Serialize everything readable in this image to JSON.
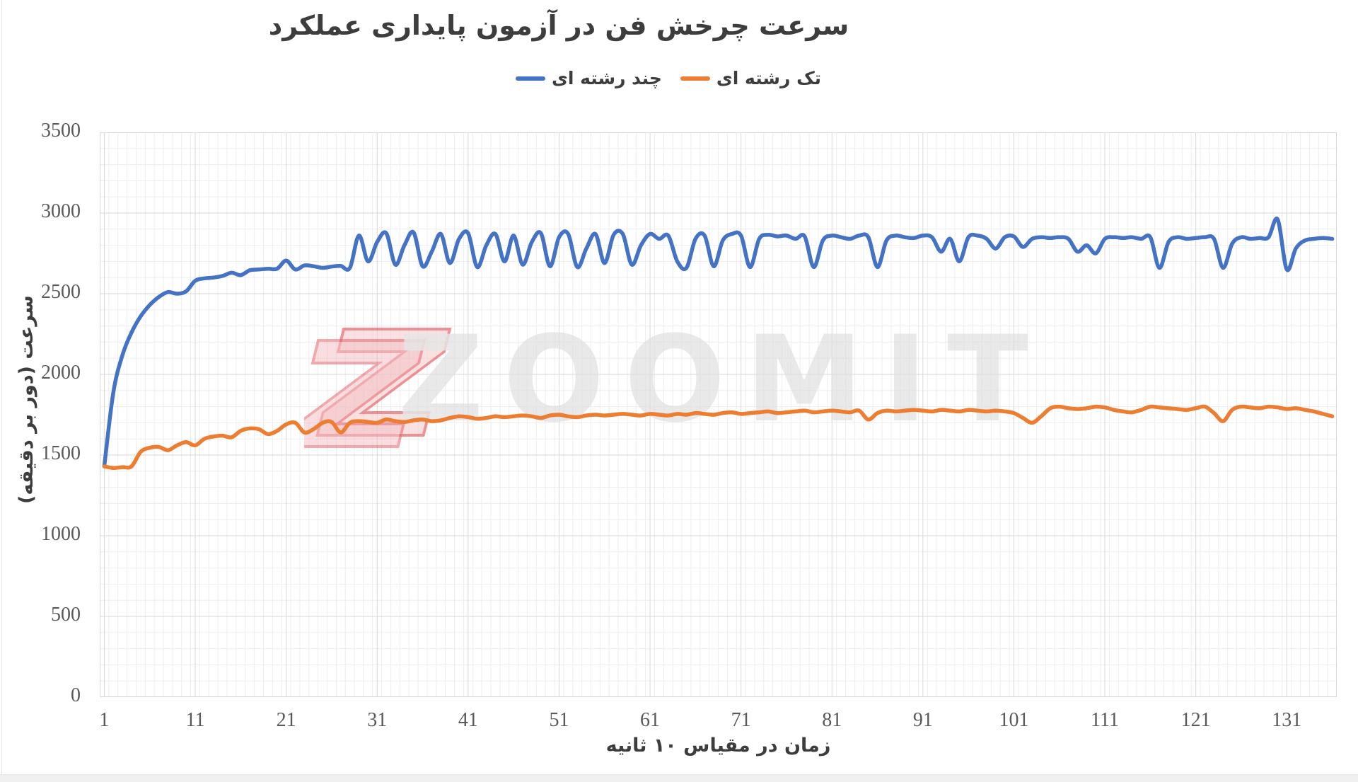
{
  "title": "سرعت چرخش فن در آزمون پایداری عملکرد",
  "legend": [
    {
      "label": "چند رشته ای",
      "color": "#4472C4"
    },
    {
      "label": "تک رشته ای",
      "color": "#ED7D31"
    }
  ],
  "watermark": {
    "text": "ZOOMIT",
    "text_color": "#dfdfdf",
    "logo_pink": "#f6cbce",
    "logo_red": "#e0474e"
  },
  "chart_data": {
    "type": "line",
    "title": "سرعت چرخش فن در آزمون پایداری عملکرد",
    "xlabel": "زمان در مقیاس ۱۰ ثانیه",
    "ylabel": "سرعت (دور بر دقیقه)",
    "ylim": [
      0,
      3500
    ],
    "y_major_step": 500,
    "y_minor_step": 100,
    "x_count": 136,
    "x_tick_labels": [
      "1",
      "11",
      "21",
      "31",
      "41",
      "51",
      "61",
      "71",
      "81",
      "91",
      "101",
      "111",
      "121",
      "131"
    ],
    "x_tick_values": [
      1,
      11,
      21,
      31,
      41,
      51,
      61,
      71,
      81,
      91,
      101,
      111,
      121,
      131
    ],
    "y_tick_labels": [
      "0",
      "500",
      "1000",
      "1500",
      "2000",
      "2500",
      "3000",
      "3500"
    ],
    "grid": true,
    "legend_position": "top",
    "series": [
      {
        "name": "چند رشته ای",
        "color": "#4472C4",
        "values": [
          1430,
          1890,
          2120,
          2260,
          2360,
          2430,
          2480,
          2510,
          2500,
          2515,
          2580,
          2595,
          2600,
          2610,
          2630,
          2615,
          2645,
          2650,
          2655,
          2655,
          2705,
          2650,
          2675,
          2670,
          2660,
          2668,
          2672,
          2660,
          2860,
          2700,
          2820,
          2875,
          2680,
          2800,
          2880,
          2670,
          2760,
          2870,
          2690,
          2840,
          2875,
          2665,
          2800,
          2870,
          2700,
          2860,
          2680,
          2820,
          2875,
          2670,
          2850,
          2870,
          2665,
          2780,
          2870,
          2690,
          2865,
          2870,
          2680,
          2800,
          2870,
          2840,
          2860,
          2700,
          2660,
          2840,
          2860,
          2670,
          2830,
          2870,
          2860,
          2665,
          2840,
          2865,
          2855,
          2860,
          2840,
          2855,
          2665,
          2830,
          2860,
          2850,
          2840,
          2860,
          2850,
          2665,
          2830,
          2860,
          2850,
          2845,
          2860,
          2850,
          2760,
          2840,
          2700,
          2850,
          2860,
          2840,
          2780,
          2850,
          2855,
          2790,
          2840,
          2850,
          2845,
          2850,
          2840,
          2760,
          2800,
          2750,
          2840,
          2850,
          2845,
          2850,
          2840,
          2850,
          2660,
          2820,
          2850,
          2840,
          2845,
          2850,
          2840,
          2660,
          2810,
          2850,
          2840,
          2845,
          2850,
          2960,
          2650,
          2780,
          2830,
          2840,
          2845,
          2840
        ]
      },
      {
        "name": "تک رشته ای",
        "color": "#ED7D31",
        "values": [
          1430,
          1420,
          1425,
          1430,
          1520,
          1545,
          1550,
          1530,
          1560,
          1580,
          1560,
          1600,
          1615,
          1620,
          1610,
          1650,
          1665,
          1660,
          1630,
          1650,
          1690,
          1700,
          1640,
          1660,
          1700,
          1705,
          1640,
          1700,
          1710,
          1705,
          1700,
          1720,
          1710,
          1705,
          1715,
          1720,
          1710,
          1715,
          1730,
          1740,
          1735,
          1725,
          1730,
          1740,
          1735,
          1740,
          1745,
          1740,
          1730,
          1745,
          1750,
          1740,
          1735,
          1745,
          1750,
          1745,
          1750,
          1755,
          1750,
          1745,
          1755,
          1750,
          1745,
          1755,
          1750,
          1760,
          1755,
          1750,
          1760,
          1765,
          1755,
          1760,
          1765,
          1770,
          1760,
          1765,
          1770,
          1775,
          1765,
          1770,
          1775,
          1770,
          1765,
          1775,
          1720,
          1760,
          1775,
          1770,
          1775,
          1780,
          1775,
          1770,
          1780,
          1775,
          1770,
          1780,
          1775,
          1770,
          1775,
          1770,
          1760,
          1730,
          1700,
          1740,
          1790,
          1800,
          1790,
          1785,
          1790,
          1800,
          1795,
          1780,
          1770,
          1765,
          1780,
          1800,
          1795,
          1790,
          1785,
          1780,
          1790,
          1800,
          1760,
          1710,
          1780,
          1800,
          1795,
          1790,
          1800,
          1795,
          1785,
          1790,
          1780,
          1770,
          1755,
          1740
        ]
      }
    ]
  }
}
